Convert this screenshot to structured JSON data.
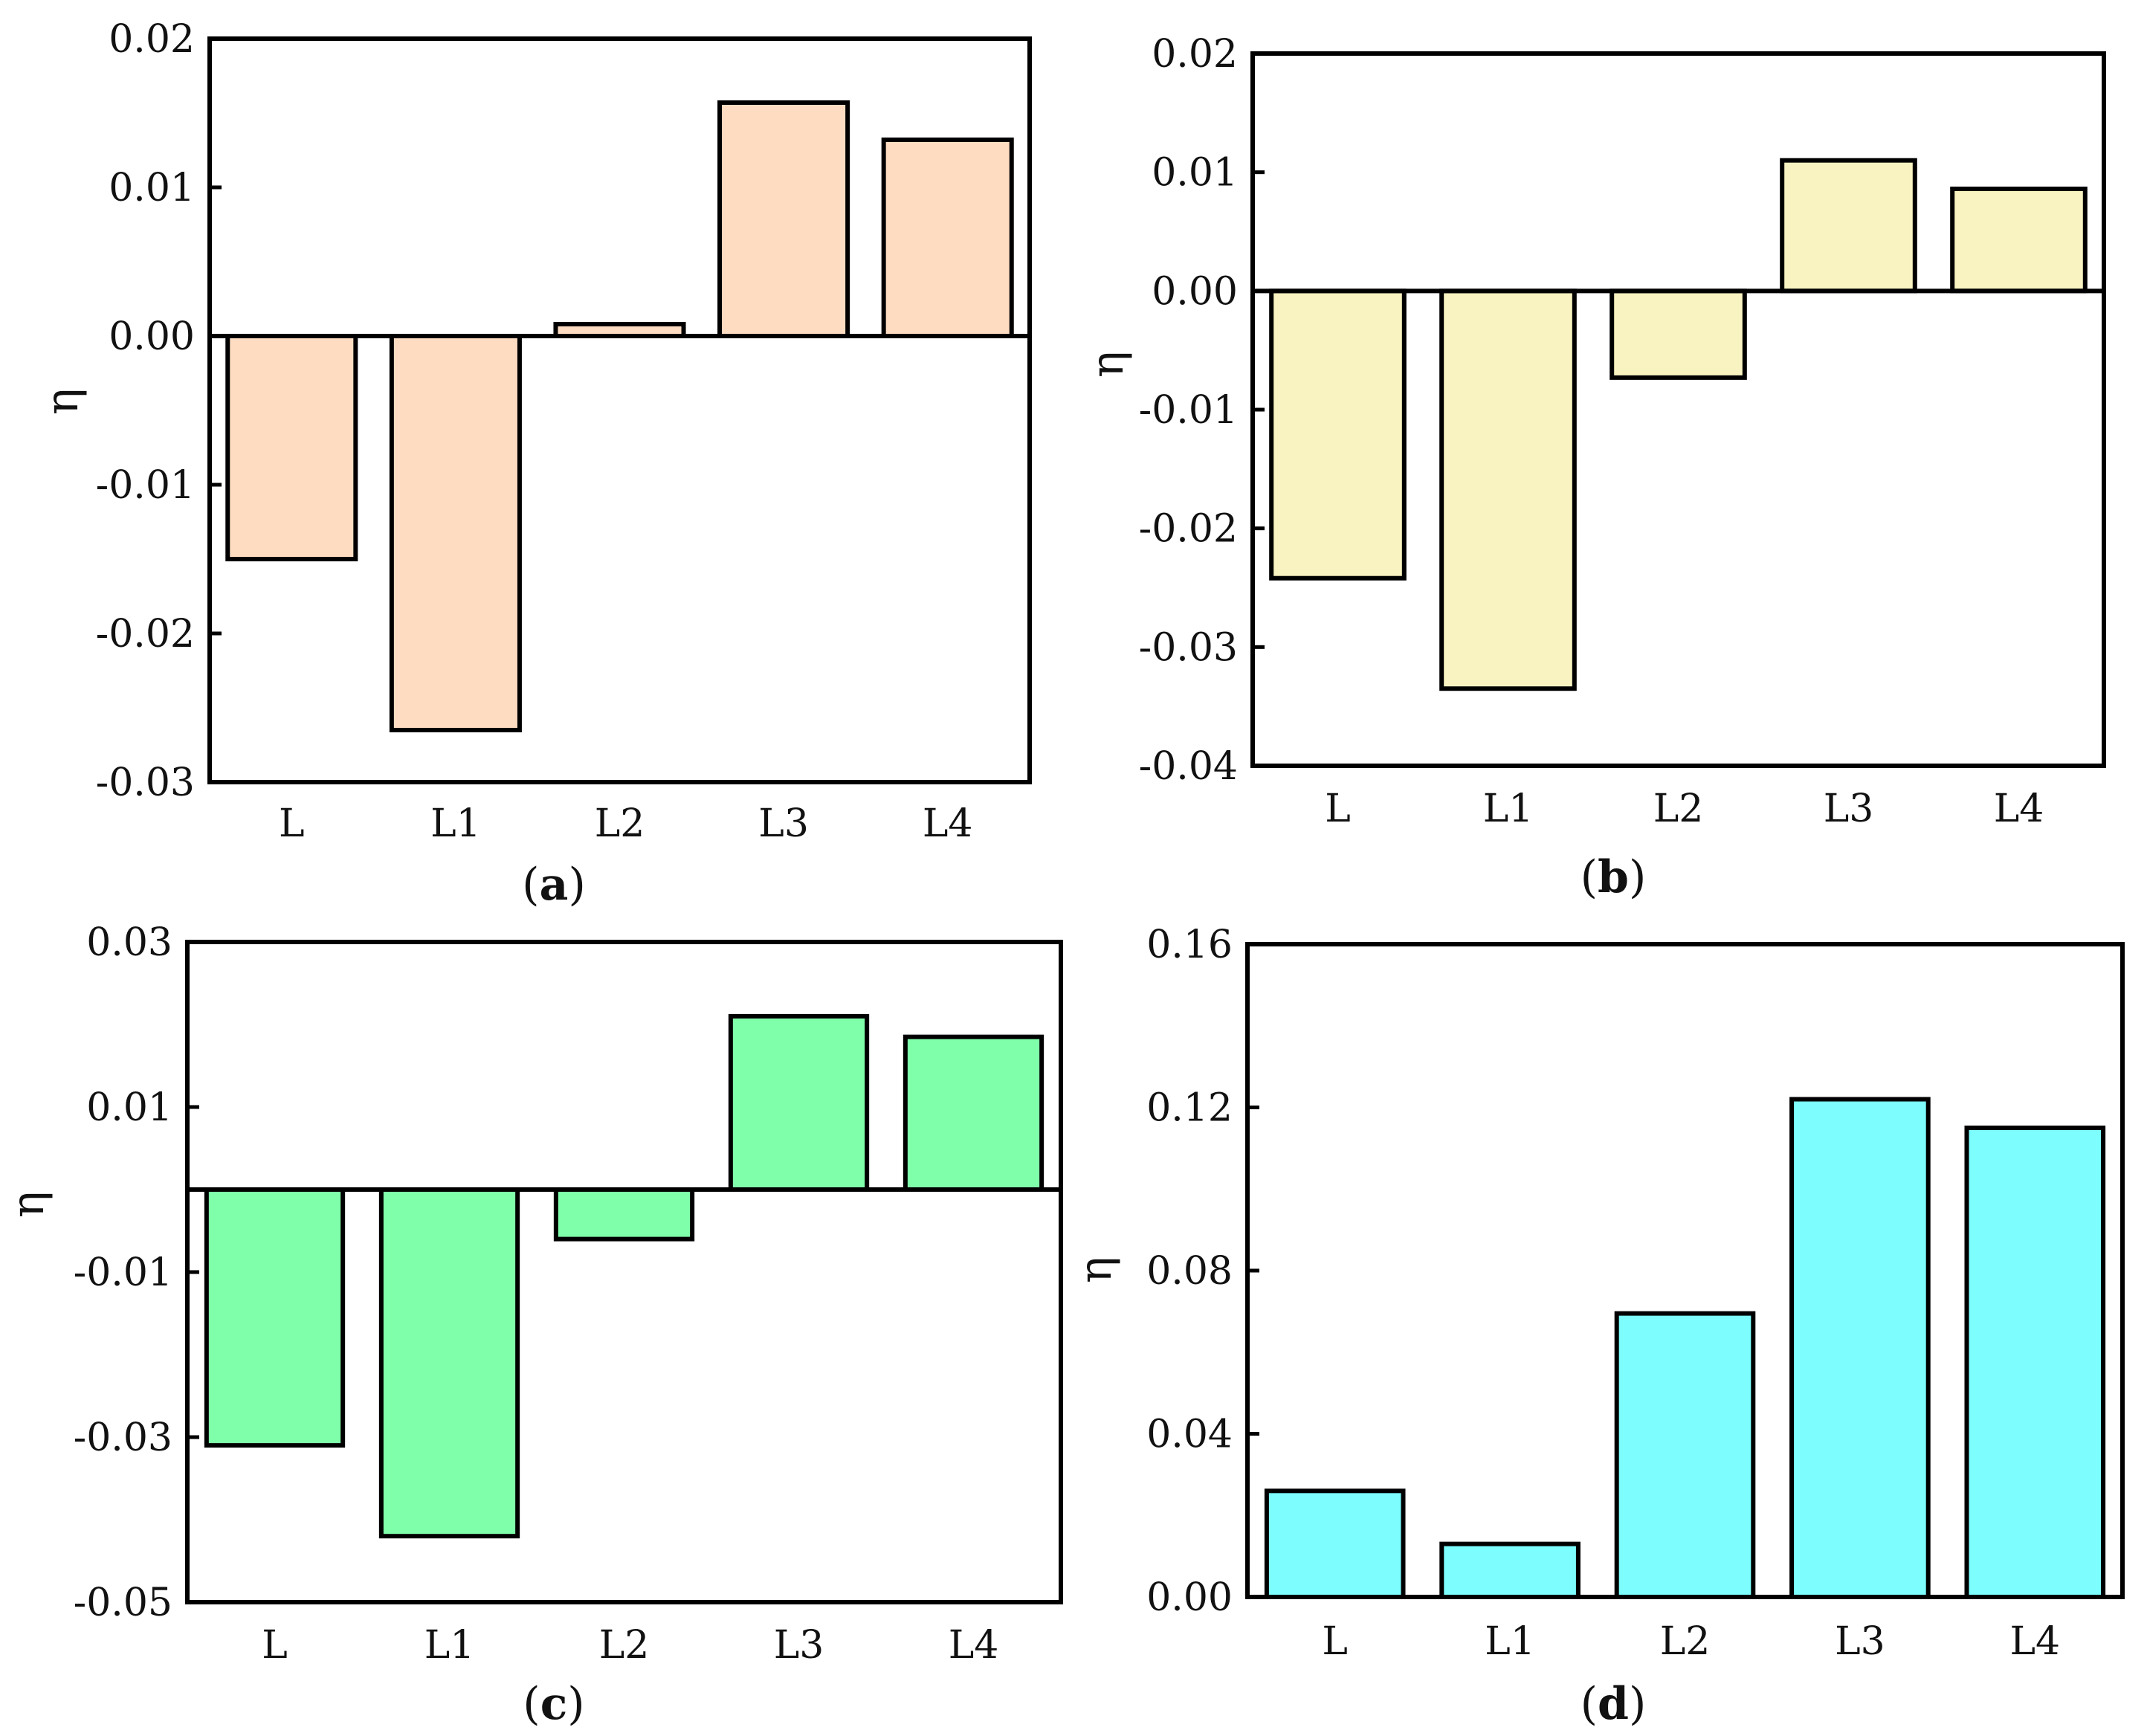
{
  "chart_data": [
    {
      "type": "bar",
      "panel_label": "a",
      "title": "",
      "xlabel": "",
      "ylabel": "η",
      "categories": [
        "L",
        "L1",
        "L2",
        "L3",
        "L4"
      ],
      "values": [
        -0.015,
        -0.0265,
        0.0008,
        0.0157,
        0.0132
      ],
      "ylim": [
        -0.03,
        0.02
      ],
      "yticks": [
        "0.02",
        "0.01",
        "0.00",
        "-0.01",
        "-0.02",
        "-0.03"
      ],
      "ytick_values": [
        0.02,
        0.01,
        0.0,
        -0.01,
        -0.02,
        -0.03
      ],
      "color": "#fddcc2",
      "grid": false
    },
    {
      "type": "bar",
      "panel_label": "b",
      "title": "",
      "xlabel": "",
      "ylabel": "η",
      "categories": [
        "L",
        "L1",
        "L2",
        "L3",
        "L4"
      ],
      "values": [
        -0.0242,
        -0.0335,
        -0.0073,
        0.011,
        0.0086
      ],
      "ylim": [
        -0.04,
        0.02
      ],
      "yticks": [
        "0.02",
        "0.01",
        "0.00",
        "-0.01",
        "-0.02",
        "-0.03",
        "-0.04"
      ],
      "ytick_values": [
        0.02,
        0.01,
        0.0,
        -0.01,
        -0.02,
        -0.03,
        -0.04
      ],
      "color": "#f8f3c0",
      "grid": false
    },
    {
      "type": "bar",
      "panel_label": "c",
      "title": "",
      "xlabel": "",
      "ylabel": "η",
      "categories": [
        "L",
        "L1",
        "L2",
        "L3",
        "L4"
      ],
      "values": [
        -0.031,
        -0.042,
        -0.006,
        0.021,
        0.0185
      ],
      "ylim": [
        -0.05,
        0.03
      ],
      "yticks": [
        "0.03",
        "0.01",
        "-0.01",
        "-0.03",
        "-0.05"
      ],
      "ytick_values": [
        0.03,
        0.01,
        -0.01,
        -0.03,
        -0.05
      ],
      "color": "#80ffaa",
      "grid": false
    },
    {
      "type": "bar",
      "panel_label": "d",
      "title": "",
      "xlabel": "",
      "ylabel": "η",
      "categories": [
        "L",
        "L1",
        "L2",
        "L3",
        "L4"
      ],
      "values": [
        0.026,
        0.013,
        0.0695,
        0.122,
        0.115
      ],
      "ylim": [
        0.0,
        0.16
      ],
      "yticks": [
        "0.16",
        "0.12",
        "0.08",
        "0.04",
        "0.00"
      ],
      "ytick_values": [
        0.16,
        0.12,
        0.08,
        0.04,
        0.0
      ],
      "color": "#7dfdfd",
      "grid": false
    }
  ]
}
